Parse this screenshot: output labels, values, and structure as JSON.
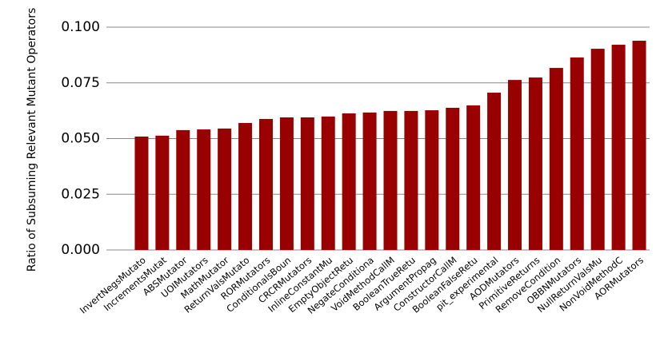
{
  "chart_data": {
    "type": "bar",
    "y_label": "Ratio of Subsuming Relevant Mutant Operators",
    "categories": [
      "InvertNegsMutato",
      "IncrementsMutat",
      "ABSMutator",
      "UOIMutators",
      "MathMutator",
      "ReturnValsMutato",
      "RORMutators",
      "ConditionalsBoun",
      "CRCRMutators",
      "InlineConstantMu",
      "EmptyObjectRetu",
      "NegateConditiona",
      "VoidMethodCallM",
      "BooleanTrueRetu",
      "ArgumentPropag",
      "ConstructorCallM",
      "BooleanFalseRetu",
      "pit_experimental",
      "AODMutators",
      "PrimitiveReturns",
      "RemoveCondition",
      "OBBNMutators",
      "NullReturnValsMu",
      "NonVoidMethodC",
      "AORMutators"
    ],
    "values": [
      0.0509,
      0.0513,
      0.0538,
      0.0541,
      0.0545,
      0.057,
      0.0588,
      0.0595,
      0.0595,
      0.0599,
      0.0613,
      0.0617,
      0.0624,
      0.0624,
      0.0627,
      0.0638,
      0.0649,
      0.0706,
      0.0763,
      0.0774,
      0.0817,
      0.0864,
      0.0903,
      0.0921,
      0.0939
    ],
    "color": "#990000",
    "ylim": [
      0,
      0.1
    ],
    "yticks": [
      {
        "value": 0,
        "label": "0.000"
      },
      0.025,
      {
        "value": 0.05,
        "label": "0.050"
      },
      0.075,
      {
        "value": 0.1,
        "label": "0.100"
      }
    ],
    "grid": true
  }
}
